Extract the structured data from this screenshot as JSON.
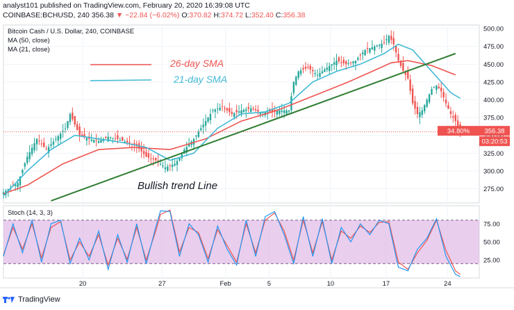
{
  "header": {
    "line1": "analyst101 published on TradingView.com, February 20, 2020 16:39:08 UTC",
    "symbol": "COINBASE:BCHUSD, 240",
    "last": "356.38",
    "arrow": "▼",
    "change": "−22.84 (−6.02%)",
    "o_label": "O:",
    "o_val": "370.82",
    "h_label": "H:",
    "h_val": "374.72",
    "l_label": "L:",
    "l_val": "352.40",
    "c_label": "C:",
    "c_val": "356.38"
  },
  "legend": {
    "title": "Bitcoin Cash / U.S. Dollar, 240, COINBASE",
    "ma50": "MA (50, close)",
    "ma21": "MA (21, close)",
    "stoch": "Stoch (14, 3, 3)"
  },
  "annotations": {
    "sma26": "26-day SMA",
    "sma21": "21-day SMA",
    "trend": "Bullish trend Line"
  },
  "price_tags": {
    "pct": "34.80%",
    "price": "356.38",
    "countdown": "03:20:53"
  },
  "footer": {
    "brand": "TradingView"
  },
  "colors": {
    "up": "#26a69a",
    "down": "#ef5350",
    "sma50": "#ef5350",
    "sma21": "#3fb8d4",
    "trend": "#2e7d32",
    "stoch_k": "#2196f3",
    "stoch_d": "#ef5350",
    "stoch_bg": "#e1bee7"
  },
  "chart_data": [
    {
      "type": "candlestick",
      "title": "Bitcoin Cash / U.S. Dollar, 240, COINBASE",
      "y_ticks": [
        275.0,
        300.0,
        325.0,
        350.0,
        375.0,
        400.0,
        425.0,
        450.0,
        475.0,
        500.0
      ],
      "x_ticks": [
        "20",
        "27",
        "Feb",
        "5",
        "10",
        "17",
        "24"
      ],
      "ylim": [
        255,
        505
      ],
      "close_path": [
        [
          0,
          270
        ],
        [
          6,
          283
        ],
        [
          10,
          320
        ],
        [
          14,
          345
        ],
        [
          18,
          330
        ],
        [
          22,
          345
        ],
        [
          26,
          360
        ],
        [
          28,
          380
        ],
        [
          32,
          350
        ],
        [
          36,
          345
        ],
        [
          40,
          342
        ],
        [
          44,
          348
        ],
        [
          48,
          345
        ],
        [
          52,
          340
        ],
        [
          56,
          335
        ],
        [
          60,
          320
        ],
        [
          64,
          315
        ],
        [
          68,
          305
        ],
        [
          72,
          310
        ],
        [
          74,
          318
        ],
        [
          76,
          330
        ],
        [
          80,
          345
        ],
        [
          84,
          365
        ],
        [
          88,
          385
        ],
        [
          92,
          390
        ],
        [
          96,
          380
        ],
        [
          100,
          385
        ],
        [
          104,
          388
        ],
        [
          108,
          382
        ],
        [
          112,
          383
        ],
        [
          116,
          385
        ],
        [
          120,
          385
        ],
        [
          122,
          425
        ],
        [
          124,
          440
        ],
        [
          128,
          445
        ],
        [
          132,
          435
        ],
        [
          136,
          445
        ],
        [
          140,
          455
        ],
        [
          144,
          450
        ],
        [
          148,
          455
        ],
        [
          152,
          470
        ],
        [
          156,
          475
        ],
        [
          160,
          480
        ],
        [
          162,
          490
        ],
        [
          164,
          478
        ],
        [
          166,
          455
        ],
        [
          168,
          440
        ],
        [
          170,
          430
        ],
        [
          172,
          395
        ],
        [
          174,
          380
        ],
        [
          176,
          385
        ],
        [
          178,
          400
        ],
        [
          180,
          415
        ],
        [
          182,
          420
        ],
        [
          184,
          412
        ],
        [
          186,
          395
        ],
        [
          188,
          380
        ],
        [
          190,
          370
        ],
        [
          192,
          356.38
        ]
      ],
      "series": [
        {
          "name": "MA (50, close)",
          "values": [
            [
              0,
              268
            ],
            [
              10,
              280
            ],
            [
              25,
              310
            ],
            [
              40,
              330
            ],
            [
              55,
              333
            ],
            [
              70,
              330
            ],
            [
              85,
              345
            ],
            [
              100,
              370
            ],
            [
              115,
              385
            ],
            [
              130,
              405
            ],
            [
              145,
              425
            ],
            [
              155,
              440
            ],
            [
              163,
              452
            ],
            [
              170,
              455
            ],
            [
              180,
              448
            ],
            [
              190,
              435
            ]
          ]
        },
        {
          "name": "MA (21, close)",
          "values": [
            [
              0,
              265
            ],
            [
              10,
              300
            ],
            [
              20,
              330
            ],
            [
              30,
              350
            ],
            [
              40,
              345
            ],
            [
              50,
              340
            ],
            [
              60,
              333
            ],
            [
              70,
              315
            ],
            [
              80,
              325
            ],
            [
              90,
              360
            ],
            [
              100,
              380
            ],
            [
              110,
              383
            ],
            [
              120,
              395
            ],
            [
              130,
              425
            ],
            [
              140,
              440
            ],
            [
              150,
              450
            ],
            [
              160,
              465
            ],
            [
              166,
              478
            ],
            [
              172,
              470
            ],
            [
              180,
              440
            ],
            [
              188,
              410
            ],
            [
              192,
              402
            ]
          ]
        }
      ],
      "trendline": [
        [
          20,
          258
        ],
        [
          190,
          465
        ]
      ],
      "last_price": 356.38,
      "last_change_pct": "34.80%"
    },
    {
      "type": "line",
      "title": "Stoch (14, 3, 3)",
      "y_ticks": [
        25.0,
        50.0,
        75.0
      ],
      "ylim": [
        0,
        100
      ],
      "bands": [
        20,
        80
      ],
      "series": [
        {
          "name": "%K",
          "values": [
            [
              0,
              30
            ],
            [
              4,
              75
            ],
            [
              8,
              35
            ],
            [
              12,
              80
            ],
            [
              16,
              22
            ],
            [
              20,
              75
            ],
            [
              24,
              80
            ],
            [
              28,
              20
            ],
            [
              32,
              55
            ],
            [
              36,
              25
            ],
            [
              40,
              65
            ],
            [
              44,
              12
            ],
            [
              48,
              60
            ],
            [
              52,
              22
            ],
            [
              56,
              75
            ],
            [
              60,
              20
            ],
            [
              64,
              70
            ],
            [
              66,
              93
            ],
            [
              70,
              92
            ],
            [
              74,
              30
            ],
            [
              78,
              75
            ],
            [
              82,
              60
            ],
            [
              86,
              22
            ],
            [
              90,
              72
            ],
            [
              94,
              40
            ],
            [
              98,
              18
            ],
            [
              102,
              80
            ],
            [
              106,
              30
            ],
            [
              110,
              85
            ],
            [
              114,
              92
            ],
            [
              118,
              60
            ],
            [
              122,
              20
            ],
            [
              126,
              85
            ],
            [
              130,
              30
            ],
            [
              134,
              82
            ],
            [
              138,
              20
            ],
            [
              142,
              70
            ],
            [
              146,
              50
            ],
            [
              150,
              75
            ],
            [
              154,
              60
            ],
            [
              158,
              80
            ],
            [
              162,
              75
            ],
            [
              166,
              15
            ],
            [
              170,
              10
            ],
            [
              174,
              40
            ],
            [
              178,
              55
            ],
            [
              182,
              82
            ],
            [
              186,
              30
            ],
            [
              190,
              5
            ],
            [
              192,
              2
            ]
          ]
        },
        {
          "name": "%D",
          "values": [
            [
              0,
              32
            ],
            [
              4,
              70
            ],
            [
              8,
              40
            ],
            [
              12,
              75
            ],
            [
              16,
              28
            ],
            [
              20,
              70
            ],
            [
              24,
              78
            ],
            [
              28,
              25
            ],
            [
              32,
              50
            ],
            [
              36,
              30
            ],
            [
              40,
              60
            ],
            [
              44,
              18
            ],
            [
              48,
              55
            ],
            [
              52,
              26
            ],
            [
              56,
              70
            ],
            [
              60,
              25
            ],
            [
              64,
              65
            ],
            [
              66,
              88
            ],
            [
              70,
              94
            ],
            [
              74,
              36
            ],
            [
              78,
              70
            ],
            [
              82,
              63
            ],
            [
              86,
              27
            ],
            [
              90,
              67
            ],
            [
              94,
              45
            ],
            [
              98,
              22
            ],
            [
              102,
              75
            ],
            [
              106,
              35
            ],
            [
              110,
              80
            ],
            [
              114,
              90
            ],
            [
              118,
              65
            ],
            [
              122,
              25
            ],
            [
              126,
              80
            ],
            [
              130,
              35
            ],
            [
              134,
              78
            ],
            [
              138,
              25
            ],
            [
              142,
              65
            ],
            [
              146,
              55
            ],
            [
              150,
              72
            ],
            [
              154,
              63
            ],
            [
              158,
              77
            ],
            [
              162,
              78
            ],
            [
              166,
              22
            ],
            [
              170,
              12
            ],
            [
              174,
              35
            ],
            [
              178,
              52
            ],
            [
              182,
              80
            ],
            [
              186,
              38
            ],
            [
              190,
              10
            ],
            [
              192,
              5
            ]
          ]
        }
      ]
    }
  ]
}
